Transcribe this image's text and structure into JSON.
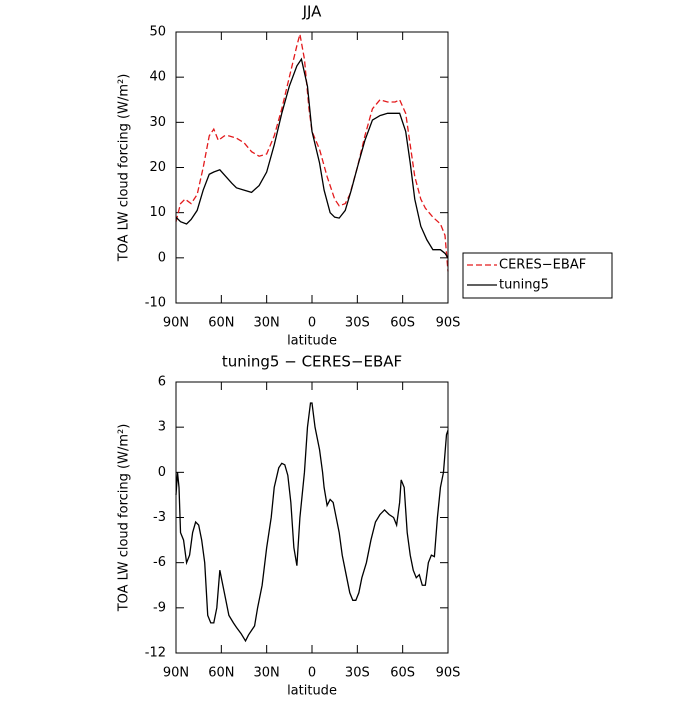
{
  "chart_data": [
    {
      "type": "line",
      "title": "JJA",
      "xlabel": "latitude",
      "ylabel": "TOA LW cloud forcing (W/m²)",
      "xlim": [
        90,
        -90
      ],
      "ylim": [
        -10,
        50
      ],
      "xticks": [
        {
          "value": 90,
          "label": "90N"
        },
        {
          "value": 60,
          "label": "60N"
        },
        {
          "value": 30,
          "label": "30N"
        },
        0,
        {
          "value": -30,
          "label": "30S"
        },
        {
          "value": -60,
          "label": "60S"
        },
        {
          "value": -90,
          "label": "90S"
        }
      ],
      "yticks": [
        -10,
        0,
        10,
        20,
        30,
        40,
        50
      ],
      "legend": "right",
      "series": [
        {
          "name": "CERES−EBAF",
          "color": "#e31a1c",
          "dash": true,
          "x": [
            90,
            87,
            84,
            80,
            76,
            72,
            68,
            65,
            62,
            58,
            55,
            50,
            45,
            40,
            35,
            30,
            25,
            20,
            15,
            10,
            8,
            5,
            2,
            0,
            -5,
            -10,
            -15,
            -18,
            -22,
            -25,
            -30,
            -35,
            -40,
            -45,
            -50,
            -55,
            -58,
            -62,
            -65,
            -68,
            -72,
            -75,
            -80,
            -85,
            -88,
            -90
          ],
          "values": [
            8,
            12,
            13,
            12,
            14,
            20,
            27,
            28.5,
            26,
            27,
            27,
            26.5,
            25.5,
            23.5,
            22.5,
            23,
            27,
            33,
            40,
            47,
            49.5,
            44,
            33,
            28,
            24,
            18,
            13,
            11.5,
            12,
            14,
            20,
            27,
            33,
            35,
            34.5,
            34.5,
            35,
            32,
            25,
            18,
            13,
            11,
            9,
            7.5,
            5,
            -3
          ]
        },
        {
          "name": "tuning5",
          "color": "#000000",
          "dash": false,
          "x": [
            90,
            87,
            83,
            80,
            76,
            72,
            68,
            65,
            61,
            57,
            53,
            50,
            45,
            40,
            35,
            30,
            25,
            20,
            15,
            10,
            7,
            3,
            0,
            -5,
            -8,
            -12,
            -15,
            -18,
            -22,
            -26,
            -30,
            -35,
            -40,
            -45,
            -50,
            -55,
            -58,
            -62,
            -65,
            -68,
            -72,
            -76,
            -80,
            -85,
            -88,
            -90
          ],
          "values": [
            9,
            8,
            7.5,
            8.5,
            10.5,
            15,
            18.5,
            19,
            19.5,
            18,
            16.5,
            15.5,
            15,
            14.5,
            16,
            19,
            25,
            32,
            38,
            42.5,
            44,
            38,
            28,
            21,
            15,
            10,
            9,
            8.8,
            10.5,
            15,
            20,
            26,
            30.5,
            31.5,
            32,
            32,
            32,
            28,
            21,
            13,
            7,
            4,
            1.8,
            1.8,
            1,
            0
          ]
        }
      ]
    },
    {
      "type": "line",
      "title": "tuning5 − CERES−EBAF",
      "xlabel": "latitude",
      "ylabel": "TOA LW cloud forcing (W/m²)",
      "xlim": [
        90,
        -90
      ],
      "ylim": [
        -12,
        6
      ],
      "xticks": [
        {
          "value": 90,
          "label": "90N"
        },
        {
          "value": 60,
          "label": "60N"
        },
        {
          "value": 30,
          "label": "30N"
        },
        0,
        {
          "value": -30,
          "label": "30S"
        },
        {
          "value": -60,
          "label": "60S"
        },
        {
          "value": -90,
          "label": "90S"
        }
      ],
      "yticks": [
        -12,
        -9,
        -6,
        -3,
        0,
        3,
        6
      ],
      "series": [
        {
          "color": "#000000",
          "dash": false,
          "x": [
            90,
            89,
            88,
            87,
            85,
            83,
            81,
            79,
            77,
            75,
            73,
            71,
            69,
            67,
            65,
            63,
            61,
            60,
            58,
            55,
            52,
            50,
            47,
            44,
            42,
            40,
            38,
            36,
            33,
            30,
            27,
            25,
            22,
            20,
            18,
            16,
            14,
            12,
            10,
            8,
            5,
            3,
            1,
            0,
            -2,
            -5,
            -7,
            -8,
            -10,
            -12,
            -14,
            -16,
            -18,
            -20,
            -22,
            -25,
            -27,
            -29,
            -31,
            -33,
            -36,
            -39,
            -42,
            -45,
            -48,
            -51,
            -54,
            -56,
            -58,
            -59,
            -61,
            -63,
            -65,
            -67,
            -69,
            -71,
            -73,
            -75,
            -77,
            -79,
            -81,
            -83,
            -85,
            -87,
            -89,
            -90
          ],
          "values": [
            -1.5,
            0,
            -1,
            -4,
            -4.5,
            -6,
            -5.5,
            -4,
            -3.3,
            -3.5,
            -4.5,
            -6,
            -9.5,
            -10,
            -10,
            -9,
            -6.5,
            -7,
            -8,
            -9.5,
            -10,
            -10.3,
            -10.7,
            -11.2,
            -10.8,
            -10.5,
            -10.2,
            -9,
            -7.5,
            -5,
            -3,
            -1,
            0.3,
            0.6,
            0.5,
            -0.2,
            -2,
            -5,
            -6.2,
            -3,
            0,
            3,
            4.6,
            4.6,
            3,
            1.5,
            0,
            -1,
            -2.2,
            -1.8,
            -2,
            -3,
            -4,
            -5.5,
            -6.5,
            -8,
            -8.5,
            -8.5,
            -8,
            -7,
            -6,
            -4.5,
            -3.3,
            -2.8,
            -2.5,
            -2.8,
            -3,
            -3.5,
            -2,
            -0.5,
            -1,
            -4,
            -5.5,
            -6.5,
            -7,
            -6.8,
            -7.5,
            -7.5,
            -6,
            -5.5,
            -5.6,
            -3,
            -1,
            0,
            2.5,
            2.8
          ]
        }
      ]
    }
  ]
}
